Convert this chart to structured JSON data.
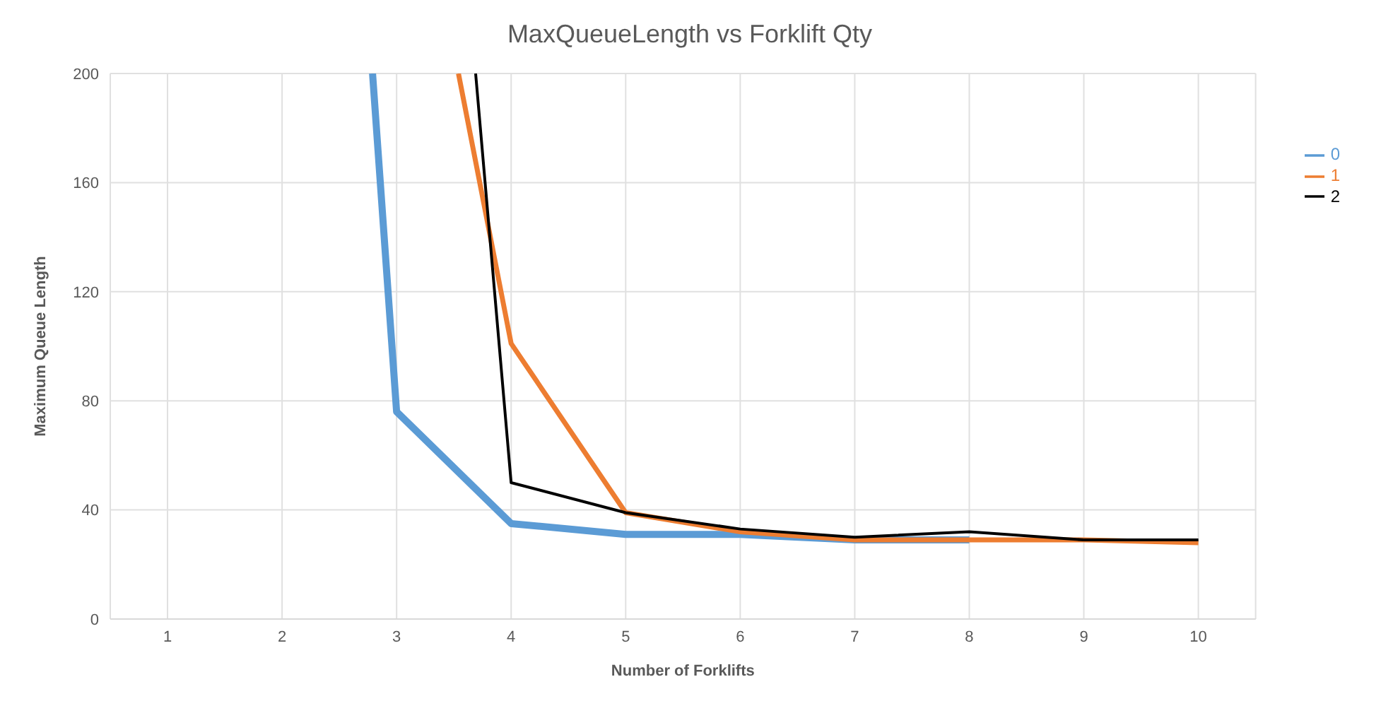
{
  "chart_data": {
    "type": "line",
    "title": "MaxQueueLength vs Forklift Qty",
    "xlabel": "Number of Forklifts",
    "ylabel": "Maximum Queue Length",
    "xlim": [
      0.5,
      10.5
    ],
    "xticks": [
      1,
      2,
      3,
      4,
      5,
      6,
      7,
      8,
      9,
      10
    ],
    "ylim": [
      0,
      200
    ],
    "yticks": [
      0,
      40,
      80,
      120,
      160,
      200
    ],
    "grid": true,
    "legend": "top right",
    "marker": "none",
    "series": [
      {
        "name": "0",
        "color": "#5b9bd5",
        "x": [
          2.79,
          3,
          4,
          5,
          6,
          7,
          8
        ],
        "values": [
          200,
          76,
          35,
          31,
          31,
          29,
          29
        ]
      },
      {
        "name": "1",
        "color": "#ed7d31",
        "x": [
          3.54,
          4,
          5,
          6,
          7,
          8,
          9,
          10
        ],
        "values": [
          200,
          101,
          39,
          32,
          29,
          29,
          29,
          28
        ]
      },
      {
        "name": "2",
        "color": "#000000",
        "x": [
          3.69,
          4,
          5,
          6,
          7,
          8,
          9,
          10
        ],
        "values": [
          200,
          50,
          39,
          33,
          30,
          32,
          29,
          29
        ]
      }
    ]
  }
}
